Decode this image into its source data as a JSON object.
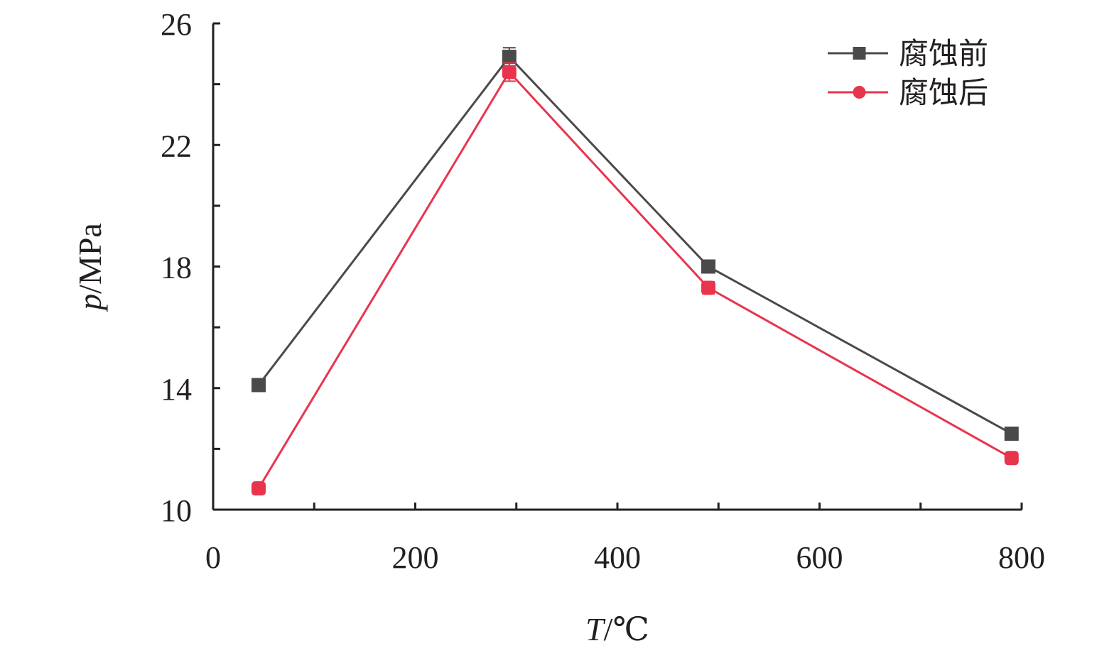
{
  "chart_data": {
    "type": "line",
    "x_axis": {
      "label_var": "T",
      "label_unit": "/℃",
      "range": [
        0,
        800
      ],
      "ticks": [
        0,
        200,
        400,
        600,
        800
      ],
      "tick_labels": [
        "0",
        "200",
        "400",
        "600",
        "800"
      ]
    },
    "y_axis": {
      "label_var": "p",
      "label_unit": "/MPa",
      "range": [
        10,
        26
      ],
      "ticks": [
        10,
        14,
        18,
        22,
        26
      ],
      "tick_labels": [
        "10",
        "14",
        "18",
        "22",
        "26"
      ]
    },
    "x": [
      45,
      293,
      490,
      790
    ],
    "series": [
      {
        "name": "腐蚀前",
        "values": [
          14.1,
          24.9,
          18.0,
          12.5
        ],
        "error": [
          0.1,
          0.3,
          0.2,
          0.1
        ],
        "color": "#4a4a4a",
        "marker": "square"
      },
      {
        "name": "腐蚀后",
        "values": [
          10.7,
          24.4,
          17.3,
          11.7
        ],
        "error": [
          0.1,
          0.3,
          0.2,
          0.1
        ],
        "color": "#e8344d",
        "marker": "circle"
      }
    ],
    "legend": {
      "position": "top-right"
    },
    "grid": false
  }
}
